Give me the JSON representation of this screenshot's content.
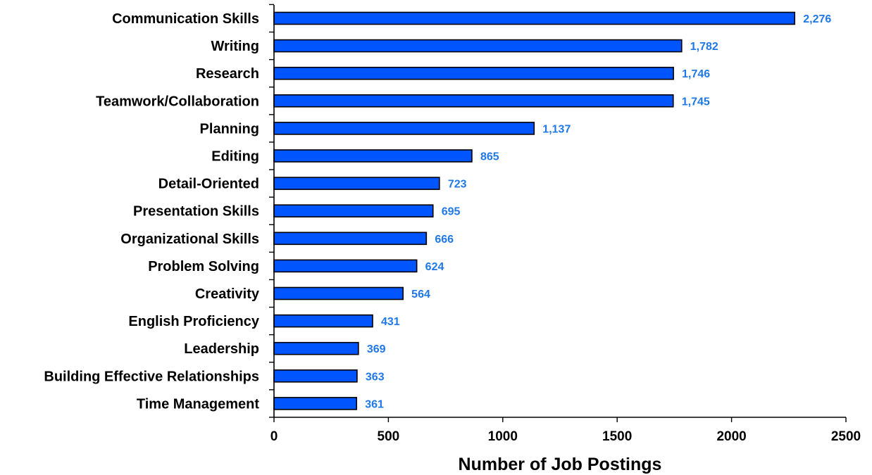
{
  "chart_data": {
    "type": "bar",
    "orientation": "horizontal",
    "categories": [
      "Communication Skills",
      "Writing",
      "Research",
      "Teamwork/Collaboration",
      "Planning",
      "Editing",
      "Detail-Oriented",
      "Presentation Skills",
      "Organizational Skills",
      "Problem Solving",
      "Creativity",
      "English Proficiency",
      "Leadership",
      "Building Effective Relationships",
      "Time Management"
    ],
    "values": [
      2276,
      1782,
      1746,
      1745,
      1137,
      865,
      723,
      695,
      666,
      624,
      564,
      431,
      369,
      363,
      361
    ],
    "value_labels": [
      "2,276",
      "1,782",
      "1,746",
      "1,745",
      "1,137",
      "865",
      "723",
      "695",
      "666",
      "624",
      "564",
      "431",
      "369",
      "363",
      "361"
    ],
    "title": "",
    "xlabel": "Number of Job Postings",
    "ylabel": "",
    "xlim": [
      0,
      2500
    ],
    "xticks": [
      0,
      500,
      1000,
      1500,
      2000,
      2500
    ],
    "xtick_labels": [
      "0",
      "500",
      "1000",
      "1500",
      "2000",
      "2500"
    ],
    "grid": false,
    "legend": "none",
    "colors": {
      "bar_fill": "#0055ff",
      "bar_stroke": "#000000",
      "value_label": "#1f78e6",
      "axis": "#000000"
    }
  }
}
